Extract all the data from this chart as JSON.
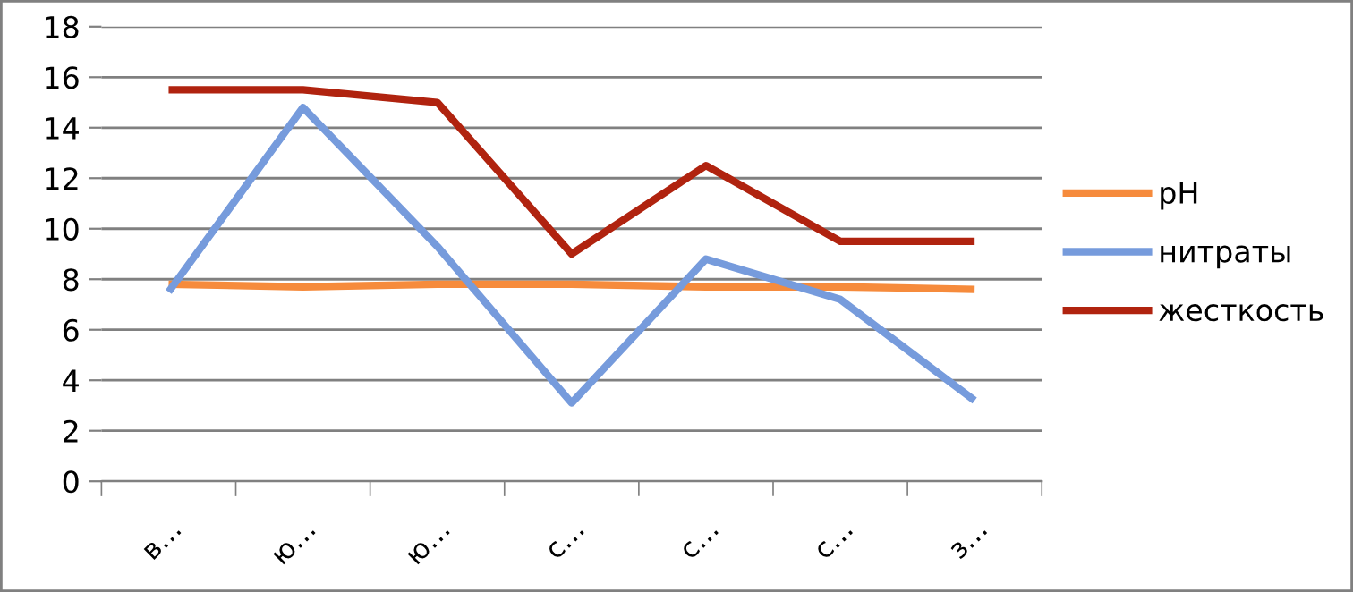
{
  "chart_data": {
    "type": "line",
    "categories": [
      "в…",
      "ю…",
      "ю…",
      "с…",
      "с…",
      "с…",
      "з…"
    ],
    "series": [
      {
        "name": "pH",
        "color": "#f68b3c",
        "values": [
          7.8,
          7.7,
          7.8,
          7.8,
          7.7,
          7.7,
          7.6
        ]
      },
      {
        "name": "нитраты",
        "color": "#769bdc",
        "values": [
          7.5,
          14.8,
          9.3,
          3.1,
          8.8,
          7.2,
          3.2
        ]
      },
      {
        "name": "жесткость",
        "color": "#b0230f",
        "values": [
          15.5,
          15.5,
          15,
          9,
          12.5,
          9.5,
          9.5
        ]
      }
    ],
    "ylim": [
      0,
      18
    ],
    "yticks": [
      0,
      2,
      4,
      6,
      8,
      10,
      12,
      14,
      16,
      18
    ],
    "grid": "y",
    "legend": "right",
    "marker": "none",
    "line_style": "solid"
  }
}
